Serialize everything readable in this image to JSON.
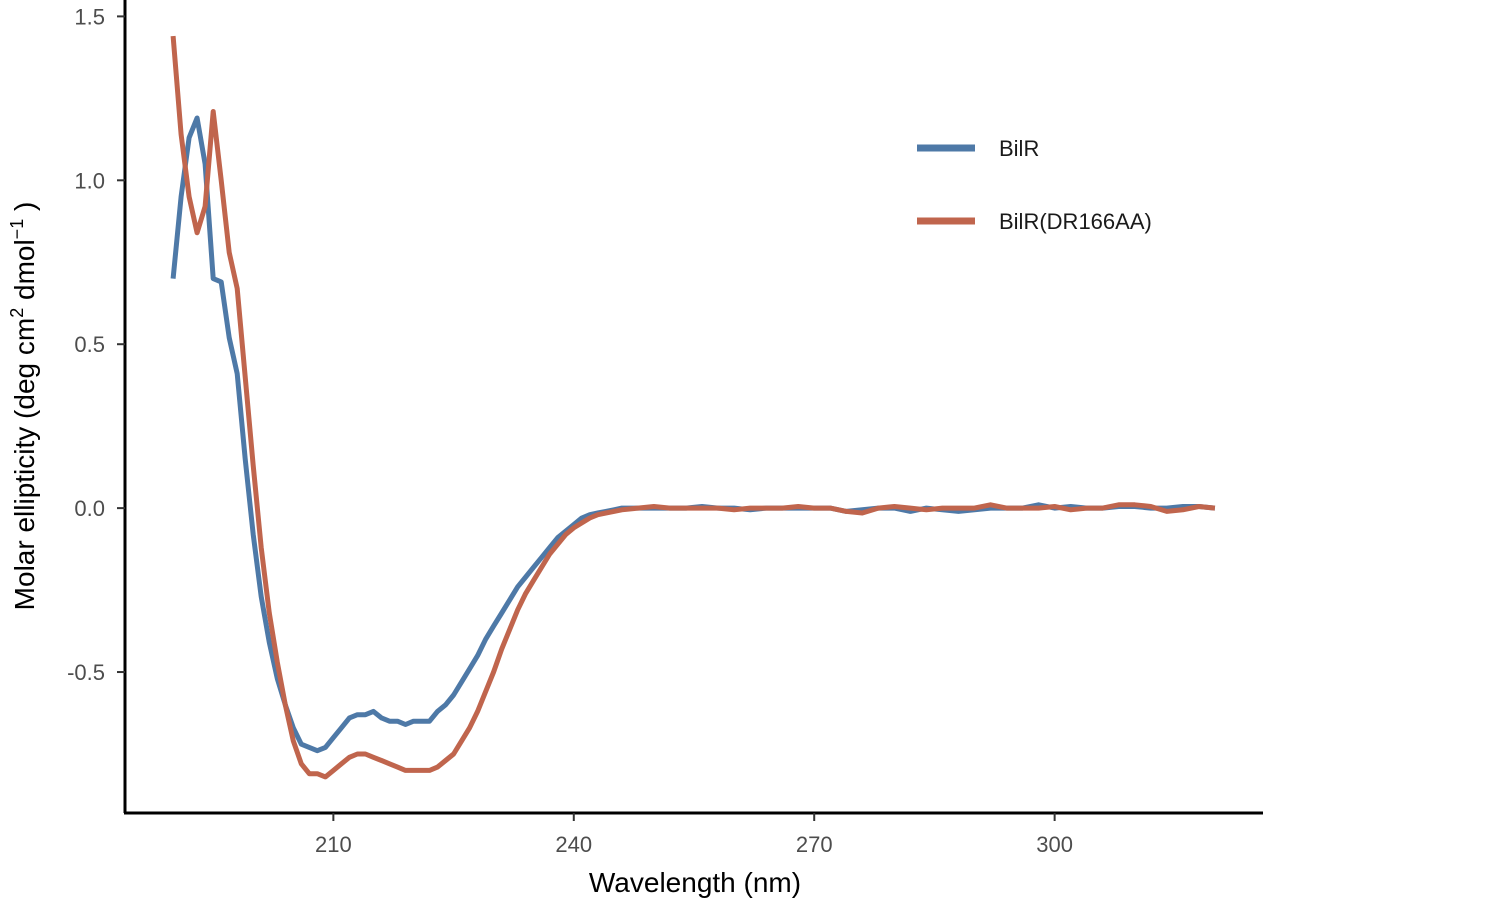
{
  "chart_data": {
    "type": "line",
    "xlabel": "Wavelength (nm)",
    "ylabel_main": "Molar ellipticity (deg cm",
    "ylabel_sup1": "2",
    "ylabel_mid": " dmol",
    "ylabel_sup2": "−1",
    "ylabel_end": " )",
    "xlim": [
      184,
      326
    ],
    "ylim": [
      -0.93,
      1.55
    ],
    "x_ticks": [
      210,
      240,
      270,
      300
    ],
    "x_tick_labels": [
      "210",
      "240",
      "270",
      "300"
    ],
    "y_ticks": [
      -0.5,
      0.0,
      0.5,
      1.0,
      1.5
    ],
    "y_tick_labels": [
      "-0.5",
      "0.0",
      "0.5",
      "1.0",
      "1.5"
    ],
    "grid": false,
    "legend_position": "top-right",
    "series": [
      {
        "name": "BilR",
        "color": "#4e79a7",
        "x": [
          190,
          191,
          192,
          193,
          194,
          195,
          196,
          197,
          198,
          199,
          200,
          201,
          202,
          203,
          204,
          205,
          206,
          207,
          208,
          209,
          210,
          211,
          212,
          213,
          214,
          215,
          216,
          217,
          218,
          219,
          220,
          221,
          222,
          223,
          224,
          225,
          226,
          227,
          228,
          229,
          230,
          231,
          232,
          233,
          234,
          235,
          236,
          237,
          238,
          239,
          240,
          241,
          242,
          243,
          244,
          245,
          246,
          248,
          250,
          252,
          254,
          256,
          258,
          260,
          262,
          264,
          266,
          268,
          270,
          272,
          274,
          276,
          278,
          280,
          282,
          284,
          286,
          288,
          290,
          292,
          294,
          296,
          298,
          300,
          302,
          304,
          306,
          308,
          310,
          312,
          314,
          316,
          318,
          320
        ],
        "y": [
          0.7,
          0.95,
          1.13,
          1.19,
          1.05,
          0.7,
          0.69,
          0.52,
          0.41,
          0.15,
          -0.08,
          -0.27,
          -0.41,
          -0.52,
          -0.6,
          -0.67,
          -0.72,
          -0.73,
          -0.74,
          -0.73,
          -0.7,
          -0.67,
          -0.64,
          -0.63,
          -0.63,
          -0.62,
          -0.64,
          -0.65,
          -0.65,
          -0.66,
          -0.65,
          -0.65,
          -0.65,
          -0.62,
          -0.6,
          -0.57,
          -0.53,
          -0.49,
          -0.45,
          -0.4,
          -0.36,
          -0.32,
          -0.28,
          -0.24,
          -0.21,
          -0.18,
          -0.15,
          -0.12,
          -0.09,
          -0.07,
          -0.05,
          -0.03,
          -0.02,
          -0.015,
          -0.01,
          -0.005,
          0.0,
          0.0,
          0.0,
          0.0,
          0.0,
          0.005,
          0.0,
          0.0,
          -0.005,
          0.0,
          0.0,
          0.0,
          0.0,
          0.0,
          -0.01,
          -0.005,
          0.0,
          0.0,
          -0.01,
          0.0,
          -0.005,
          -0.01,
          -0.005,
          0.0,
          0.0,
          0.0,
          0.01,
          0.0,
          0.005,
          0.0,
          0.0,
          0.005,
          0.005,
          0.0,
          0.0,
          0.005,
          0.005,
          0.0
        ]
      },
      {
        "name": "BilR(DR166AA)",
        "color": "#c0654d",
        "x": [
          190,
          191,
          192,
          193,
          194,
          195,
          196,
          197,
          198,
          199,
          200,
          201,
          202,
          203,
          204,
          205,
          206,
          207,
          208,
          209,
          210,
          211,
          212,
          213,
          214,
          215,
          216,
          217,
          218,
          219,
          220,
          221,
          222,
          223,
          224,
          225,
          226,
          227,
          228,
          229,
          230,
          231,
          232,
          233,
          234,
          235,
          236,
          237,
          238,
          239,
          240,
          241,
          242,
          243,
          244,
          245,
          246,
          248,
          250,
          252,
          254,
          256,
          258,
          260,
          262,
          264,
          266,
          268,
          270,
          272,
          274,
          276,
          278,
          280,
          282,
          284,
          286,
          288,
          290,
          292,
          294,
          296,
          298,
          300,
          302,
          304,
          306,
          308,
          310,
          312,
          314,
          316,
          318,
          320
        ],
        "y": [
          1.44,
          1.14,
          0.95,
          0.84,
          0.92,
          1.21,
          1.0,
          0.78,
          0.67,
          0.4,
          0.13,
          -0.12,
          -0.32,
          -0.47,
          -0.6,
          -0.71,
          -0.78,
          -0.81,
          -0.81,
          -0.82,
          -0.8,
          -0.78,
          -0.76,
          -0.75,
          -0.75,
          -0.76,
          -0.77,
          -0.78,
          -0.79,
          -0.8,
          -0.8,
          -0.8,
          -0.8,
          -0.79,
          -0.77,
          -0.75,
          -0.71,
          -0.67,
          -0.62,
          -0.56,
          -0.5,
          -0.43,
          -0.37,
          -0.31,
          -0.26,
          -0.22,
          -0.18,
          -0.14,
          -0.11,
          -0.08,
          -0.06,
          -0.045,
          -0.03,
          -0.02,
          -0.015,
          -0.01,
          -0.005,
          0.0,
          0.005,
          0.0,
          0.0,
          0.0,
          0.0,
          -0.005,
          0.0,
          0.0,
          0.0,
          0.005,
          0.0,
          0.0,
          -0.01,
          -0.015,
          0.0,
          0.005,
          0.0,
          -0.005,
          0.0,
          0.0,
          0.0,
          0.01,
          0.0,
          0.0,
          0.0,
          0.005,
          -0.005,
          0.0,
          0.0,
          0.01,
          0.01,
          0.005,
          -0.01,
          -0.005,
          0.005,
          0.0
        ]
      }
    ]
  }
}
